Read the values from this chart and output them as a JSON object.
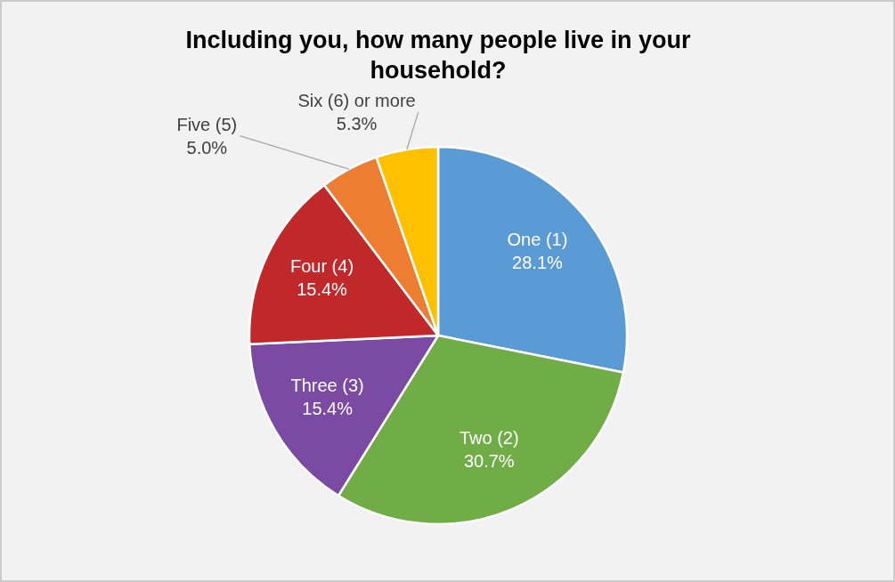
{
  "chart_data": {
    "type": "pie",
    "title": "Including you, how many people live in your household?",
    "categories": [
      "One (1)",
      "Two (2)",
      "Three (3)",
      "Four (4)",
      "Five (5)",
      "Six (6) or more"
    ],
    "values": [
      28.1,
      30.7,
      15.4,
      15.4,
      5.0,
      5.3
    ],
    "value_labels": [
      "28.1%",
      "30.7%",
      "15.4%",
      "15.4%",
      "5.0%",
      "5.3%"
    ],
    "colors": [
      "#5b9bd5",
      "#70ad47",
      "#7b4aa2",
      "#c0282a",
      "#ed7d31",
      "#ffc000"
    ],
    "legend": false
  }
}
